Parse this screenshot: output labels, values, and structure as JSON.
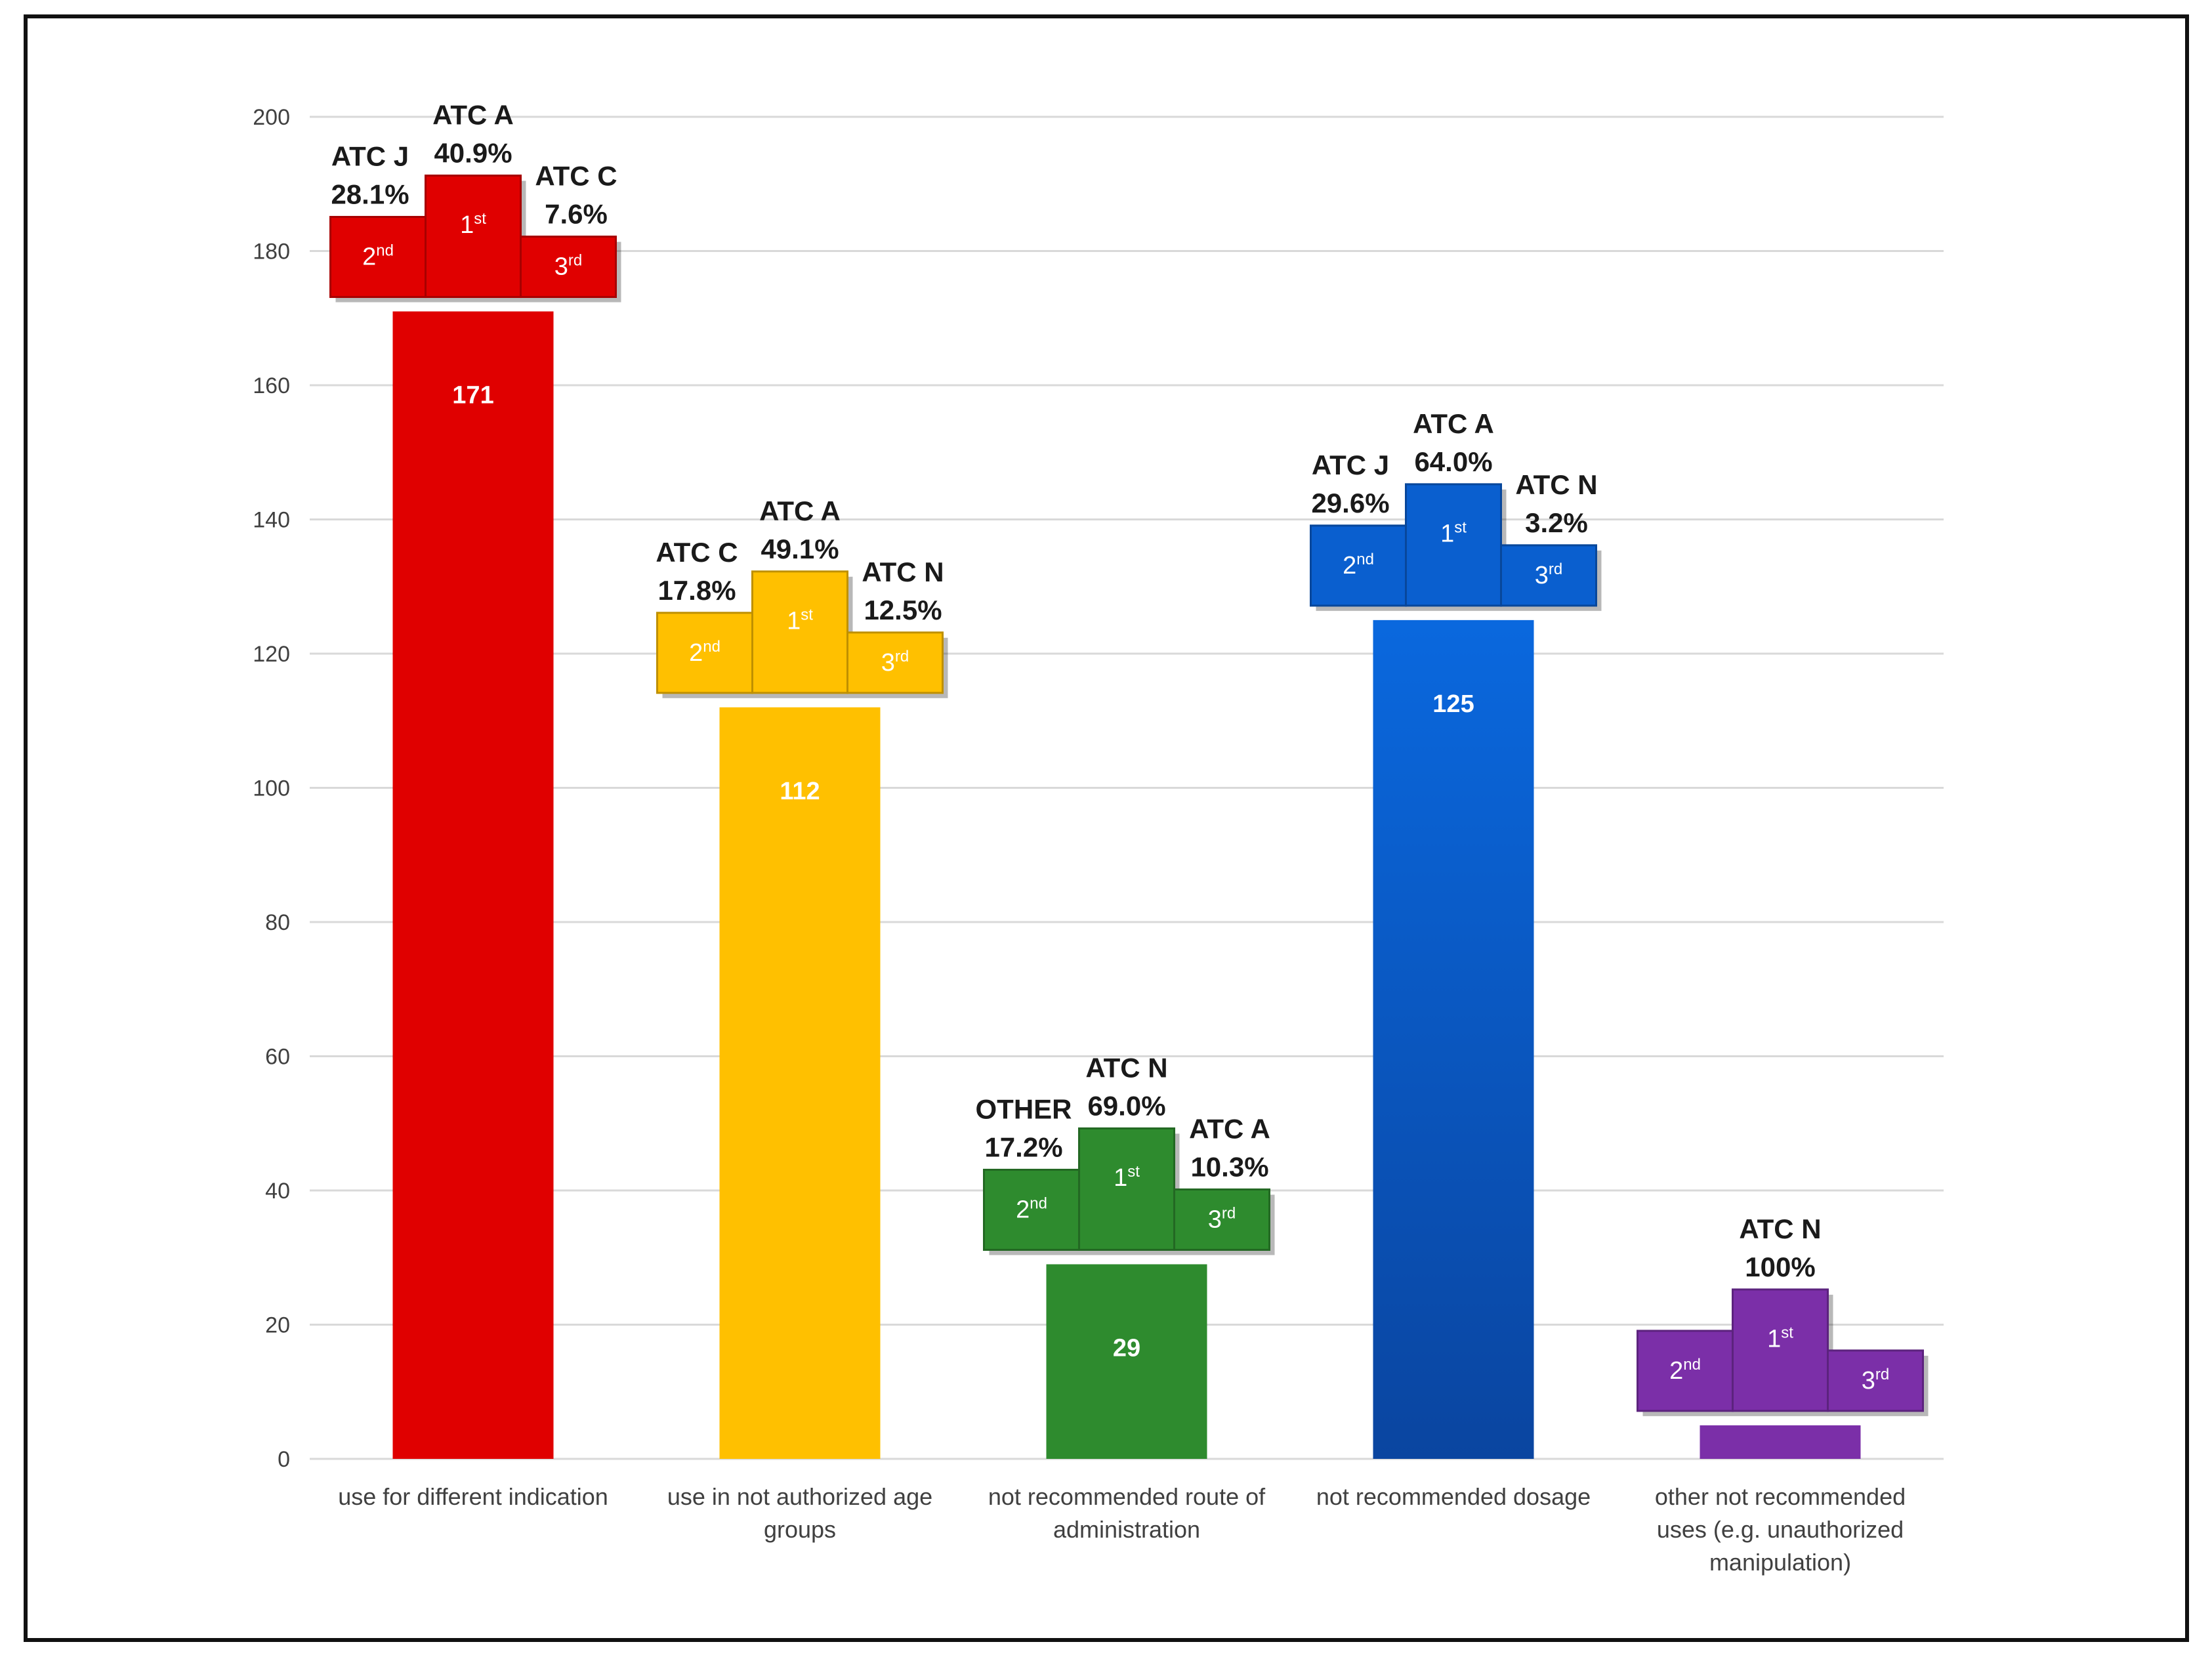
{
  "chart_data": {
    "type": "bar",
    "categories": [
      "use for different indication",
      "use in not authorized age groups",
      "not recommended route of administration",
      "not recommended dosage",
      "other not recommended uses (e.g. unauthorized manipulation)"
    ],
    "category_lines": [
      [
        "use for different indication"
      ],
      [
        "use in not authorized age",
        "groups"
      ],
      [
        "not recommended route of",
        "administration"
      ],
      [
        "not recommended dosage"
      ],
      [
        "other not recommended",
        "uses (e.g. unauthorized",
        "manipulation)"
      ]
    ],
    "values": [
      171,
      112,
      29,
      125,
      5
    ],
    "value_labels": [
      "171",
      "112",
      "29",
      "125",
      "5"
    ],
    "colors": [
      "#e00000",
      "#ffc000",
      "#2e8b2e",
      "#0a5fcf",
      "#7b2fa8"
    ],
    "ylim": [
      0,
      200
    ],
    "yticks": [
      0,
      20,
      40,
      60,
      80,
      100,
      120,
      140,
      160,
      180,
      200
    ],
    "grid": true,
    "podiums": [
      {
        "first": {
          "atc": "ATC A",
          "pct": "40.9%"
        },
        "second": {
          "atc": "ATC J",
          "pct": "28.1%"
        },
        "third": {
          "atc": "ATC C",
          "pct": "7.6%"
        }
      },
      {
        "first": {
          "atc": "ATC A",
          "pct": "49.1%"
        },
        "second": {
          "atc": "ATC C",
          "pct": "17.8%"
        },
        "third": {
          "atc": "ATC N",
          "pct": "12.5%"
        }
      },
      {
        "first": {
          "atc": "ATC N",
          "pct": "69.0%"
        },
        "second": {
          "atc": "OTHER",
          "pct": "17.2%"
        },
        "third": {
          "atc": "ATC A",
          "pct": "10.3%"
        }
      },
      {
        "first": {
          "atc": "ATC A",
          "pct": "64.0%"
        },
        "second": {
          "atc": "ATC J",
          "pct": "29.6%"
        },
        "third": {
          "atc": "ATC N",
          "pct": "3.2%"
        }
      },
      {
        "first": {
          "atc": "ATC N",
          "pct": "100%"
        },
        "second": null,
        "third": null
      }
    ],
    "rank_labels": {
      "first": {
        "num": "1",
        "sup": "st"
      },
      "second": {
        "num": "2",
        "sup": "nd"
      },
      "third": {
        "num": "3",
        "sup": "rd"
      }
    }
  }
}
